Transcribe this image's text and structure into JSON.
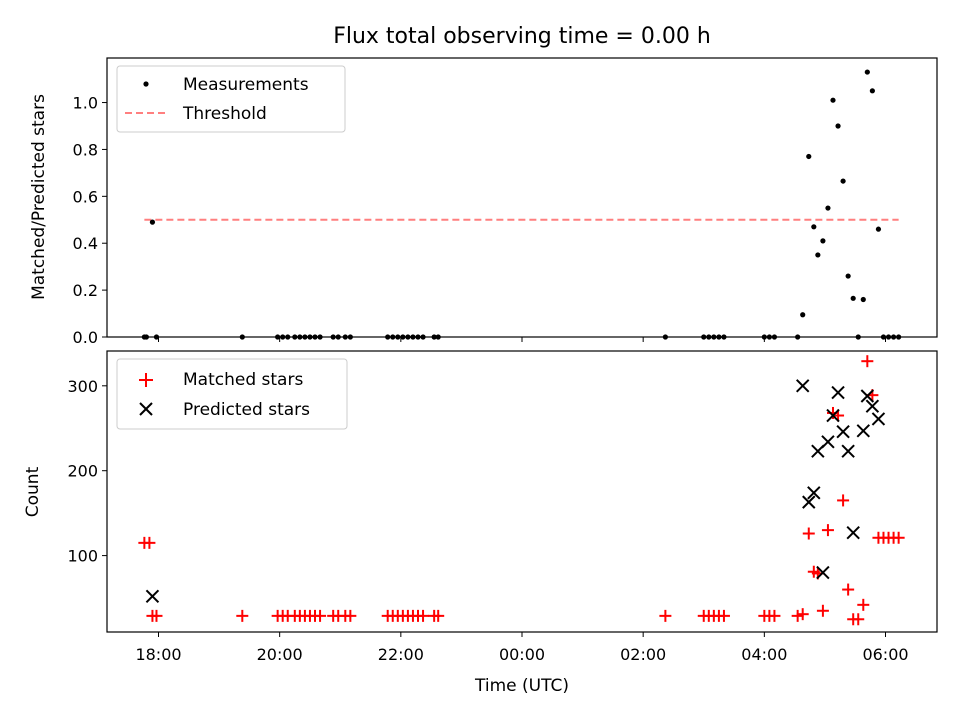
{
  "chart_data": [
    {
      "type": "scatter",
      "title": "Flux total observing time = 0.00 h",
      "ylabel": "Matched/Predicted stars",
      "xlabel": "",
      "x_unit": "hours since 17:00 UTC (axis labeled in UTC clock time)",
      "xlim": [
        "17:09",
        "06:51"
      ],
      "ylim": [
        0,
        1.19
      ],
      "yticks": [
        0.0,
        0.2,
        0.4,
        0.6,
        0.8,
        1.0
      ],
      "ytick_labels": [
        "0.0",
        "0.2",
        "0.4",
        "0.6",
        "0.8",
        "1.0"
      ],
      "legend_position": "upper-left",
      "legend": [
        "Measurements",
        "Threshold"
      ],
      "series": [
        {
          "name": "Measurements",
          "marker": "dot",
          "color": "#000000",
          "points": [
            [
              "17:46",
              0
            ],
            [
              "17:48",
              0
            ],
            [
              "17:54",
              0.49
            ],
            [
              "17:58",
              0
            ],
            [
              "19:23",
              0
            ],
            [
              "19:58",
              0
            ],
            [
              "20:03",
              0
            ],
            [
              "20:08",
              0
            ],
            [
              "20:15",
              0
            ],
            [
              "20:20",
              0
            ],
            [
              "20:25",
              0
            ],
            [
              "20:30",
              0
            ],
            [
              "20:35",
              0
            ],
            [
              "20:40",
              0
            ],
            [
              "20:53",
              0
            ],
            [
              "20:58",
              0
            ],
            [
              "21:05",
              0
            ],
            [
              "21:10",
              0
            ],
            [
              "21:47",
              0
            ],
            [
              "21:52",
              0
            ],
            [
              "21:57",
              0
            ],
            [
              "22:02",
              0
            ],
            [
              "22:07",
              0
            ],
            [
              "22:12",
              0
            ],
            [
              "22:17",
              0
            ],
            [
              "22:22",
              0
            ],
            [
              "22:33",
              0
            ],
            [
              "22:37",
              0
            ],
            [
              "02:22",
              0
            ],
            [
              "03:00",
              0
            ],
            [
              "03:05",
              0
            ],
            [
              "03:10",
              0
            ],
            [
              "03:15",
              0
            ],
            [
              "03:20",
              0
            ],
            [
              "04:00",
              0
            ],
            [
              "04:05",
              0
            ],
            [
              "04:10",
              0
            ],
            [
              "04:33",
              0
            ],
            [
              "04:38",
              0.095
            ],
            [
              "04:44",
              0.77
            ],
            [
              "04:49",
              0.47
            ],
            [
              "04:53",
              0.35
            ],
            [
              "04:58",
              0.41
            ],
            [
              "05:03",
              0.55
            ],
            [
              "05:08",
              1.01
            ],
            [
              "05:13",
              0.9
            ],
            [
              "05:18",
              0.665
            ],
            [
              "05:23",
              0.26
            ],
            [
              "05:28",
              0.165
            ],
            [
              "05:33",
              0
            ],
            [
              "05:38",
              0.16
            ],
            [
              "05:42",
              1.13
            ],
            [
              "05:47",
              1.05
            ],
            [
              "05:53",
              0.46
            ],
            [
              "05:58",
              0
            ],
            [
              "06:03",
              0
            ],
            [
              "06:08",
              0
            ],
            [
              "06:13",
              0
            ]
          ]
        },
        {
          "name": "Threshold",
          "style": "dashed",
          "color": "#ff7f7f",
          "x": [
            "17:46",
            "06:13"
          ],
          "y": [
            0.5,
            0.5
          ]
        }
      ]
    },
    {
      "type": "scatter",
      "title": "",
      "ylabel": "Count",
      "xlabel": "Time (UTC)",
      "xlim": [
        "17:09",
        "06:51"
      ],
      "ylim": [
        10,
        341
      ],
      "yticks": [
        100,
        200,
        300
      ],
      "ytick_labels": [
        "100",
        "200",
        "300"
      ],
      "xtick_labels": [
        "18:00",
        "20:00",
        "22:00",
        "00:00",
        "02:00",
        "04:00",
        "06:00"
      ],
      "legend_position": "upper-left",
      "legend": [
        "Matched stars",
        "Predicted stars"
      ],
      "series": [
        {
          "name": "Matched stars",
          "marker": "plus",
          "color": "#ff0000",
          "points": [
            [
              "17:46",
              115
            ],
            [
              "17:51",
              115
            ],
            [
              "17:54",
              29
            ],
            [
              "17:58",
              29
            ],
            [
              "19:23",
              29
            ],
            [
              "19:58",
              29
            ],
            [
              "20:03",
              29
            ],
            [
              "20:08",
              29
            ],
            [
              "20:15",
              29
            ],
            [
              "20:20",
              29
            ],
            [
              "20:25",
              29
            ],
            [
              "20:30",
              29
            ],
            [
              "20:35",
              29
            ],
            [
              "20:40",
              29
            ],
            [
              "20:53",
              29
            ],
            [
              "20:58",
              29
            ],
            [
              "21:05",
              29
            ],
            [
              "21:10",
              29
            ],
            [
              "21:47",
              29
            ],
            [
              "21:52",
              29
            ],
            [
              "21:57",
              29
            ],
            [
              "22:02",
              29
            ],
            [
              "22:07",
              29
            ],
            [
              "22:12",
              29
            ],
            [
              "22:17",
              29
            ],
            [
              "22:22",
              29
            ],
            [
              "22:33",
              29
            ],
            [
              "22:37",
              29
            ],
            [
              "02:22",
              29
            ],
            [
              "03:00",
              29
            ],
            [
              "03:05",
              29
            ],
            [
              "03:10",
              29
            ],
            [
              "03:15",
              29
            ],
            [
              "03:20",
              29
            ],
            [
              "04:00",
              29
            ],
            [
              "04:05",
              29
            ],
            [
              "04:10",
              29
            ],
            [
              "04:33",
              29
            ],
            [
              "04:38",
              31
            ],
            [
              "04:44",
              126
            ],
            [
              "04:49",
              81
            ],
            [
              "04:53",
              79
            ],
            [
              "04:58",
              35
            ],
            [
              "05:03",
              130
            ],
            [
              "05:08",
              268
            ],
            [
              "05:13",
              265
            ],
            [
              "05:18",
              165
            ],
            [
              "05:23",
              60
            ],
            [
              "05:28",
              25
            ],
            [
              "05:33",
              25
            ],
            [
              "05:38",
              42
            ],
            [
              "05:42",
              329
            ],
            [
              "05:47",
              289
            ],
            [
              "05:53",
              121
            ],
            [
              "05:58",
              121
            ],
            [
              "06:03",
              121
            ],
            [
              "06:08",
              121
            ],
            [
              "06:13",
              121
            ]
          ]
        },
        {
          "name": "Predicted stars",
          "marker": "x",
          "color": "#000000",
          "points": [
            [
              "17:54",
              52
            ],
            [
              "04:38",
              300
            ],
            [
              "04:44",
              163
            ],
            [
              "04:49",
              174
            ],
            [
              "04:53",
              223
            ],
            [
              "04:58",
              80
            ],
            [
              "05:03",
              234
            ],
            [
              "05:08",
              265
            ],
            [
              "05:13",
              292
            ],
            [
              "05:18",
              246
            ],
            [
              "05:23",
              223
            ],
            [
              "05:28",
              127
            ],
            [
              "05:38",
              247
            ],
            [
              "05:42",
              288
            ],
            [
              "05:47",
              276
            ],
            [
              "05:53",
              261
            ]
          ]
        }
      ]
    }
  ]
}
